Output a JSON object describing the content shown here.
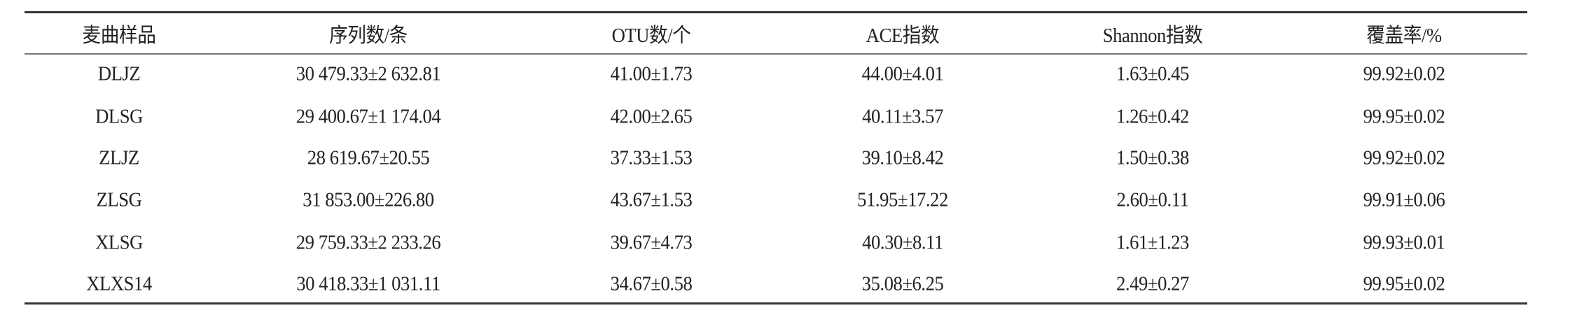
{
  "table": {
    "headers": [
      "麦曲样品",
      "序列数/条",
      "OTU数/个",
      "ACE指数",
      "Shannon指数",
      "覆盖率/%"
    ],
    "rows": [
      [
        "DLJZ",
        "30 479.33±2 632.81",
        "41.00±1.73",
        "44.00±4.01",
        "1.63±0.45",
        "99.92±0.02"
      ],
      [
        "DLSG",
        "29 400.67±1 174.04",
        "42.00±2.65",
        "40.11±3.57",
        "1.26±0.42",
        "99.95±0.02"
      ],
      [
        "ZLJZ",
        "28 619.67±20.55",
        "37.33±1.53",
        "39.10±8.42",
        "1.50±0.38",
        "99.92±0.02"
      ],
      [
        "ZLSG",
        "31 853.00±226.80",
        "43.67±1.53",
        "51.95±17.22",
        "2.60±0.11",
        "99.91±0.06"
      ],
      [
        "XLSG",
        "29 759.33±2 233.26",
        "39.67±4.73",
        "40.30±8.11",
        "1.61±1.23",
        "99.93±0.01"
      ],
      [
        "XLXS14",
        "30 418.33±1 031.11",
        "34.67±0.58",
        "35.08±6.25",
        "2.49±0.27",
        "99.95±0.02"
      ]
    ]
  }
}
